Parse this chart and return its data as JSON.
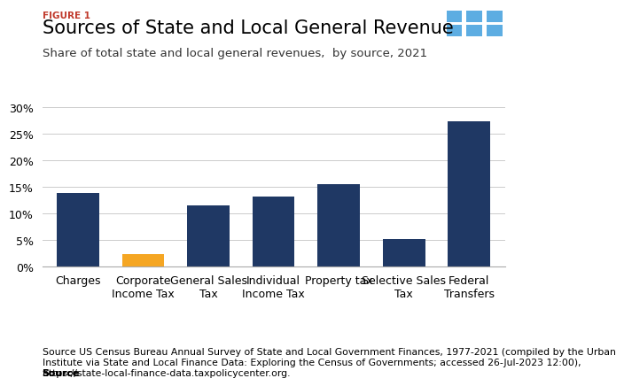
{
  "figure_label": "FIGURE 1",
  "title": "Sources of State and Local General Revenue",
  "subtitle": "Share of total state and local general revenues,  by source, 2021",
  "categories": [
    "Charges",
    "Corporate\nIncome Tax",
    "General Sales\nTax",
    "Individual\nIncome Tax",
    "Property tax",
    "Selective Sales\nTax",
    "Federal\nTransfers"
  ],
  "values": [
    13.8,
    2.3,
    11.6,
    13.2,
    15.5,
    5.2,
    27.3
  ],
  "bar_colors": [
    "#1F3864",
    "#F5A623",
    "#1F3864",
    "#1F3864",
    "#1F3864",
    "#1F3864",
    "#1F3864"
  ],
  "ylim": [
    0,
    0.31
  ],
  "yticks": [
    0,
    0.05,
    0.1,
    0.15,
    0.2,
    0.25,
    0.3
  ],
  "ytick_labels": [
    "0%",
    "5%",
    "10%",
    "15%",
    "20%",
    "25%",
    "30%"
  ],
  "bar_color_dark": "#1F3864",
  "bar_color_orange": "#F5A623",
  "source_bold": "Source",
  "source_rest": " US Census Bureau Annual Survey of State and Local Government Finances, 1977-2021 (compiled by the Urban\nInstitute via State and Local Finance Data: Exploring the Census of Governments; accessed 26-Jul-2023 12:00),\nhttps://state-local-finance-data.taxpolicycenter.org.",
  "figure_label_color": "#C0392B",
  "title_fontsize": 15,
  "subtitle_fontsize": 9.5,
  "axis_fontsize": 9,
  "source_fontsize": 7.8,
  "tpc_bg_color": "#1F3864",
  "tpc_tile_color": "#5DADE2",
  "tpc_text_color": "#FFFFFF"
}
